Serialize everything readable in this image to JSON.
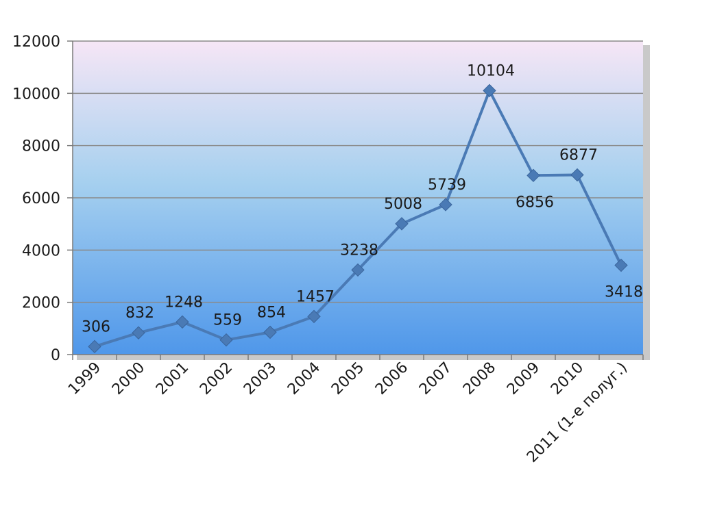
{
  "chart_data": {
    "type": "line",
    "categories": [
      "1999",
      "2000",
      "2001",
      "2002",
      "2003",
      "2004",
      "2005",
      "2006",
      "2007",
      "2008",
      "2009",
      "2010",
      "2011 (1-е полуг.)"
    ],
    "series": [
      {
        "values": [
          306,
          832,
          1248,
          559,
          854,
          1457,
          3238,
          5008,
          5739,
          10104,
          6856,
          6877,
          3418
        ]
      }
    ],
    "data_labels": [
      "306",
      "832",
      "1248",
      "559",
      "854",
      "1457",
      "3238",
      "5008",
      "5739",
      "10104",
      "6856",
      "6877",
      "3418"
    ],
    "y_ticks": [
      "0",
      "2000",
      "4000",
      "6000",
      "8000",
      "10000",
      "12000"
    ],
    "ylim": [
      0,
      12000
    ],
    "grid": true,
    "legend": "none",
    "line_color": "#4a7ab5",
    "marker": "diamond"
  }
}
